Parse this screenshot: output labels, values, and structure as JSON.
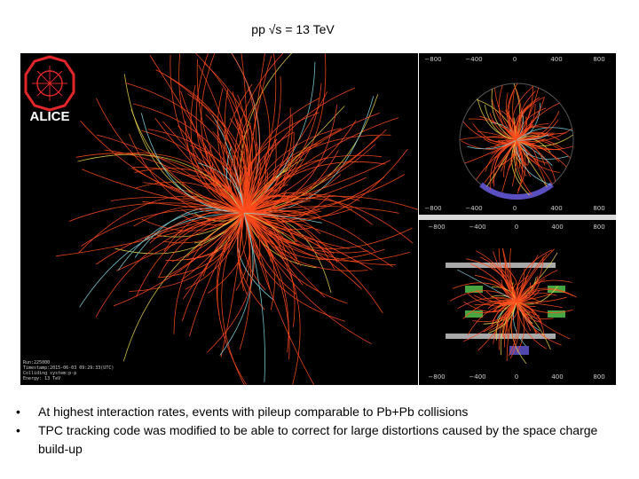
{
  "slide": {
    "title": "pp √s = 13 TeV"
  },
  "logo": {
    "text": "ALICE"
  },
  "run_info": [
    "Run:225000",
    "Timestamp:2015-06-03 09:29:33(UTC)",
    "Colliding system:p-p",
    "Energy: 13 TeV"
  ],
  "axis_ticks": [
    "−800",
    "−400",
    "0",
    "400",
    "800"
  ],
  "bullets": [
    "At highest interaction rates, events with pileup comparable to Pb+Pb collisions",
    "TPC tracking code was modified to be able to correct for large distortions caused by the space charge build-up"
  ],
  "colors": {
    "track_primary": "#ff4a1c",
    "track_secondary": "#e8d24a",
    "track_cyan": "#7fd6e0",
    "logo_red": "#e0262a"
  }
}
